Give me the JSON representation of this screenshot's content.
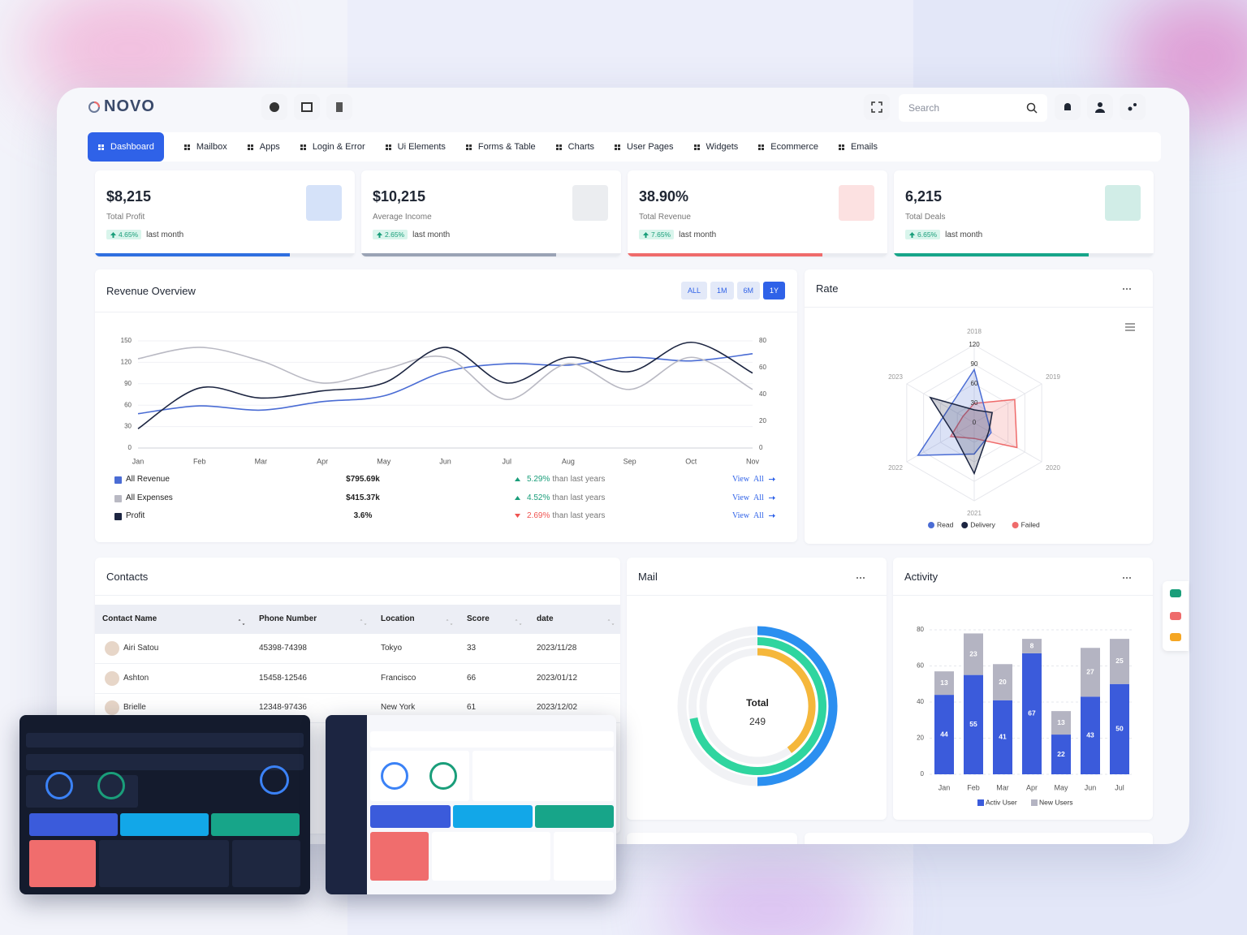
{
  "header": {
    "brand": "NOVO",
    "search_placeholder": "Search"
  },
  "nav": {
    "items": [
      "Dashboard",
      "Mailbox",
      "Apps",
      "Login & Error",
      "Ui Elements",
      "Forms & Table",
      "Charts",
      "User Pages",
      "Widgets",
      "Ecommerce",
      "Emails"
    ],
    "active": "Dashboard"
  },
  "stats": [
    {
      "value": "$8,215",
      "label": "Total Profit",
      "change": "4.65%",
      "period": "last month",
      "color": "#2f6fe0"
    },
    {
      "value": "$10,215",
      "label": "Average Income",
      "change": "2.65%",
      "period": "last month",
      "color": "#9aa3b5"
    },
    {
      "value": "38.90%",
      "label": "Total Revenue",
      "change": "7.65%",
      "period": "last month",
      "color": "#ef6b6b"
    },
    {
      "value": "6,215",
      "label": "Total Deals",
      "change": "6.65%",
      "period": "last month",
      "color": "#17a589"
    }
  ],
  "chart_data": [
    {
      "type": "line",
      "title": "Revenue Overview",
      "ranges": [
        "ALL",
        "1M",
        "6M",
        "1Y"
      ],
      "active_range": "1Y",
      "categories": [
        "Jan",
        "Feb",
        "Mar",
        "Apr",
        "May",
        "Jun",
        "Jul",
        "Aug",
        "Sep",
        "Oct",
        "Nov"
      ],
      "series": [
        {
          "name": "All Revenue",
          "color": "#4a6cd4",
          "values": [
            48,
            59,
            53,
            65,
            73,
            107,
            118,
            116,
            127,
            122,
            132
          ]
        },
        {
          "name": "All Expenses",
          "color": "#b9b9c3",
          "values": [
            125,
            141,
            122,
            91,
            110,
            127,
            68,
            118,
            82,
            127,
            82
          ]
        },
        {
          "name": "Profit",
          "color": "#1c2541",
          "values": [
            27,
            84,
            70,
            80,
            91,
            141,
            91,
            127,
            107,
            148,
            105
          ]
        }
      ],
      "ylim": [
        0,
        150
      ],
      "yticks": [
        0,
        30,
        60,
        90,
        120,
        150
      ],
      "y2lim": [
        0,
        80
      ],
      "y2ticks": [
        0,
        20,
        40,
        60,
        80
      ],
      "grid": true
    },
    {
      "type": "radar",
      "title": "Rate",
      "categories": [
        "2018",
        "2019",
        "2020",
        "2021",
        "2022",
        "2023"
      ],
      "rlim": [
        0,
        120
      ],
      "rticks": [
        0,
        30,
        60,
        90,
        120
      ],
      "series": [
        {
          "name": "Read",
          "color": "#4a6cd4",
          "values": [
            82,
            22,
            30,
            48,
            100,
            45
          ]
        },
        {
          "name": "Delivery",
          "color": "#1c2541",
          "values": [
            20,
            32,
            26,
            78,
            36,
            78
          ]
        },
        {
          "name": "Failed",
          "color": "#ef6b6b",
          "values": [
            30,
            72,
            76,
            24,
            42,
            20
          ]
        }
      ],
      "legend": "bottom"
    },
    {
      "type": "radial",
      "title": "Mail",
      "center_label": "Total",
      "center_value": 249,
      "ylim": [
        0,
        100
      ],
      "values": [
        50,
        72,
        40
      ],
      "colors": [
        "#2b8ff0",
        "#2fd59f",
        "#f5b73b"
      ]
    },
    {
      "type": "bar",
      "stacked": true,
      "title": "Activity",
      "categories": [
        "Jan",
        "Feb",
        "Mar",
        "Apr",
        "May",
        "Jun",
        "Jul"
      ],
      "series": [
        {
          "name": "Activ User",
          "color": "#3b5bdb",
          "values": [
            44,
            55,
            41,
            67,
            22,
            43,
            50
          ]
        },
        {
          "name": "New Users",
          "color": "#b4b4c2",
          "values": [
            13,
            23,
            20,
            8,
            13,
            27,
            25
          ]
        }
      ],
      "ylim": [
        0,
        80
      ],
      "yticks": [
        0,
        20,
        40,
        60,
        80
      ],
      "grid": true,
      "legend": "bottom"
    }
  ],
  "revenue_summary": [
    {
      "total": "$795.69k",
      "trend": "up",
      "change": "5.29%",
      "note": "than last years",
      "link": "View All"
    },
    {
      "total": "$415.37k",
      "trend": "up",
      "change": "4.52%",
      "note": "than last years",
      "link": "View All"
    },
    {
      "total": "3.6%",
      "trend": "down",
      "change": "2.69%",
      "note": "than last years",
      "link": "View All"
    }
  ],
  "contacts": {
    "title": "Contacts",
    "columns": [
      "Contact Name",
      "Phone Number",
      "Location",
      "Score",
      "date"
    ],
    "rows": [
      [
        "Airi Satou",
        "45398-74398",
        "Tokyo",
        33,
        "2023/11/28"
      ],
      [
        "Ashton",
        "15458-12546",
        "Francisco",
        66,
        "2023/01/12"
      ],
      [
        "Brielle",
        "12348-97436",
        "New York",
        61,
        "2023/12/02"
      ]
    ]
  }
}
